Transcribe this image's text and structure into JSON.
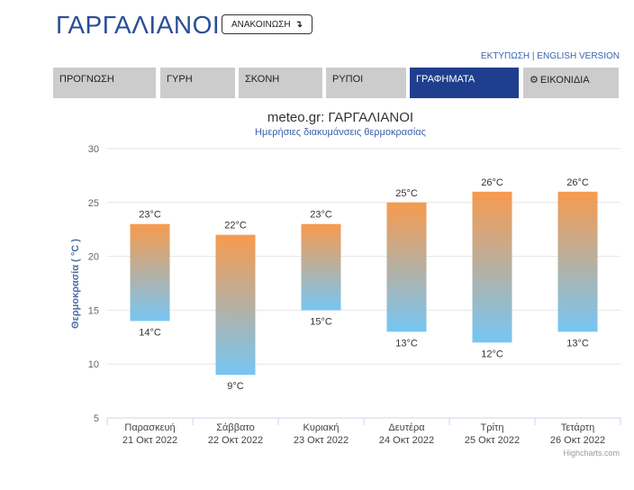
{
  "header": {
    "title": "ΓΑΡΓΑΛΙΑΝΟΙ",
    "announce_label": "ΑΝΑΚΟΙΝΩΣΗ",
    "print_link": "ΕΚΤΥΠΩΣΗ",
    "separator": "|",
    "english_link": "ENGLISH VERSION"
  },
  "tabs": [
    {
      "label": "ΠΡΟΓΝΩΣΗ",
      "active": false
    },
    {
      "label": "ΓΥΡΗ",
      "active": false
    },
    {
      "label": "ΣΚΟΝΗ",
      "active": false
    },
    {
      "label": "ΡΥΠΟΙ",
      "active": false
    },
    {
      "label": "ΓΡΑΦΗΜΑΤΑ",
      "active": true
    },
    {
      "label": "ΕΙΚΟΝΙΔΙΑ",
      "active": false,
      "icon": "gear-icon"
    }
  ],
  "chart_data": {
    "type": "columnrange",
    "title": "meteo.gr: ΓΑΡΓΑΛΙΑΝΟΙ",
    "subtitle": "Ημερήσιες διακυμάνσεις θερμοκρασίας",
    "ylabel": "Θερμοκρασία ( °C )",
    "ylim": [
      5,
      30
    ],
    "yticks": [
      5,
      10,
      15,
      20,
      25,
      30
    ],
    "unit": "°C",
    "categories": [
      {
        "day": "Παρασκευή",
        "date": "21 Οκτ 2022"
      },
      {
        "day": "Σάββατο",
        "date": "22 Οκτ 2022"
      },
      {
        "day": "Κυριακή",
        "date": "23 Οκτ 2022"
      },
      {
        "day": "Δευτέρα",
        "date": "24 Οκτ 2022"
      },
      {
        "day": "Τρίτη",
        "date": "25 Οκτ 2022"
      },
      {
        "day": "Τετάρτη",
        "date": "26 Οκτ 2022"
      }
    ],
    "low": [
      14,
      9,
      15,
      13,
      12,
      13
    ],
    "high": [
      23,
      22,
      23,
      25,
      26,
      26
    ],
    "colors": {
      "high": "#f79a4e",
      "low": "#76c6f4",
      "axis_title": "#4a6ea8",
      "title": "#333333",
      "subtitle": "#3a63ad"
    },
    "credits": "Highcharts.com"
  }
}
